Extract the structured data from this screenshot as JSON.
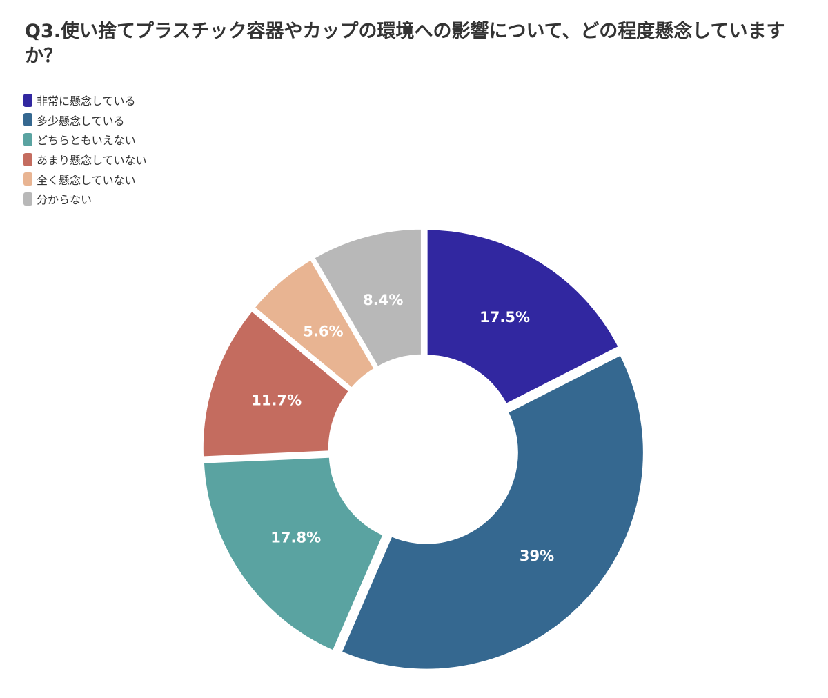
{
  "chart_data": {
    "type": "pie",
    "variant": "donut",
    "title": "Q3.使い捨てプラスチック容器やカップの環境への影響について、どの程度懸念していますか？",
    "legend_position": "top-left",
    "categories": [
      "非常に懸念している",
      "多少懸念している",
      "どちらともいえない",
      "あまり懸念していない",
      "全く懸念していない",
      "分からない"
    ],
    "values": [
      17.5,
      39,
      17.8,
      11.7,
      5.6,
      8.4
    ],
    "labels": [
      "17.5%",
      "39%",
      "17.8%",
      "11.7%",
      "5.6%",
      "8.4%"
    ],
    "colors": [
      "#3127a0",
      "#356890",
      "#5aa3a1",
      "#c46c5f",
      "#e8b492",
      "#b8b8b8"
    ],
    "value_unit": "%"
  }
}
